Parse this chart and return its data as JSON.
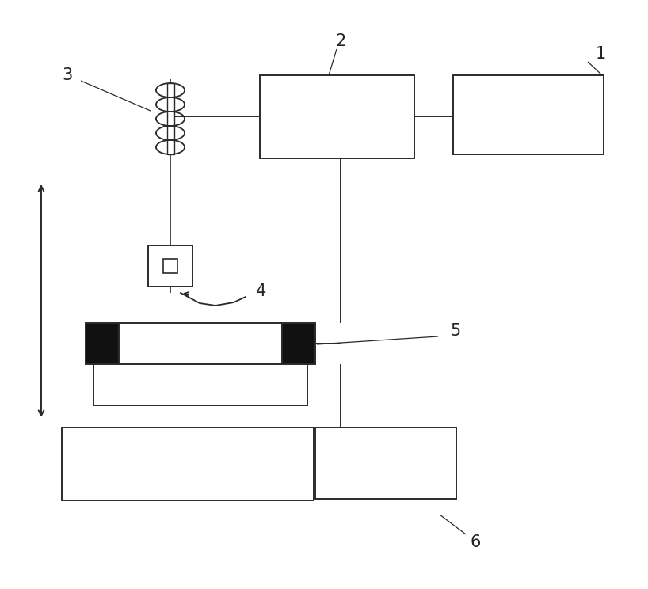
{
  "bg_color": "#ffffff",
  "line_color": "#2a2a2a",
  "dark_fill": "#111111",
  "label_color": "#222222",
  "lw": 1.4,
  "fig_w": 8.18,
  "fig_h": 7.44,
  "dpi": 100
}
